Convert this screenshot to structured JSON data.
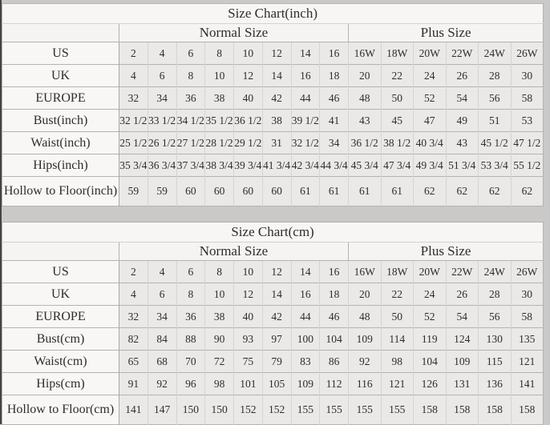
{
  "colors": {
    "page_background": "#cac9c7",
    "table_background": "#f7f6f4",
    "value_cell_background": "#eae9e7",
    "grid_line": "#b4b3b1",
    "text": "#2e2d2c",
    "left_edge": "#45433f"
  },
  "tables": [
    {
      "title": "Size Chart(inch)",
      "groups": [
        {
          "label": "Normal Size",
          "span": 8
        },
        {
          "label": "Plus Size",
          "span": 6
        }
      ],
      "rows": [
        {
          "label": "US",
          "values": [
            "2",
            "4",
            "6",
            "8",
            "10",
            "12",
            "14",
            "16",
            "16W",
            "18W",
            "20W",
            "22W",
            "24W",
            "26W"
          ]
        },
        {
          "label": "UK",
          "values": [
            "4",
            "6",
            "8",
            "10",
            "12",
            "14",
            "16",
            "18",
            "20",
            "22",
            "24",
            "26",
            "28",
            "30"
          ]
        },
        {
          "label": "EUROPE",
          "values": [
            "32",
            "34",
            "36",
            "38",
            "40",
            "42",
            "44",
            "46",
            "48",
            "50",
            "52",
            "54",
            "56",
            "58"
          ]
        },
        {
          "label": "Bust(inch)",
          "values": [
            "32 1/2",
            "33 1/2",
            "34 1/2",
            "35 1/2",
            "36 1/2",
            "38",
            "39 1/2",
            "41",
            "43",
            "45",
            "47",
            "49",
            "51",
            "53"
          ]
        },
        {
          "label": "Waist(inch)",
          "values": [
            "25 1/2",
            "26 1/2",
            "27 1/2",
            "28 1/2",
            "29 1/2",
            "31",
            "32 1/2",
            "34",
            "36 1/2",
            "38 1/2",
            "40 3/4",
            "43",
            "45 1/2",
            "47 1/2"
          ]
        },
        {
          "label": "Hips(inch)",
          "values": [
            "35 3/4",
            "36 3/4",
            "37 3/4",
            "38 3/4",
            "39 3/4",
            "41 3/4",
            "42 3/4",
            "44 3/4",
            "45 3/4",
            "47 3/4",
            "49 3/4",
            "51 3/4",
            "53 3/4",
            "55 1/2"
          ]
        },
        {
          "label": "Hollow to Floor(inch)",
          "values": [
            "59",
            "59",
            "60",
            "60",
            "60",
            "60",
            "61",
            "61",
            "61",
            "61",
            "62",
            "62",
            "62",
            "62"
          ]
        }
      ]
    },
    {
      "title": "Size Chart(cm)",
      "groups": [
        {
          "label": "Normal Size",
          "span": 8
        },
        {
          "label": "Plus Size",
          "span": 6
        }
      ],
      "rows": [
        {
          "label": "US",
          "values": [
            "2",
            "4",
            "6",
            "8",
            "10",
            "12",
            "14",
            "16",
            "16W",
            "18W",
            "20W",
            "22W",
            "24W",
            "26W"
          ]
        },
        {
          "label": "UK",
          "values": [
            "4",
            "6",
            "8",
            "10",
            "12",
            "14",
            "16",
            "18",
            "20",
            "22",
            "24",
            "26",
            "28",
            "30"
          ]
        },
        {
          "label": "EUROPE",
          "values": [
            "32",
            "34",
            "36",
            "38",
            "40",
            "42",
            "44",
            "46",
            "48",
            "50",
            "52",
            "54",
            "56",
            "58"
          ]
        },
        {
          "label": "Bust(cm)",
          "values": [
            "82",
            "84",
            "88",
            "90",
            "93",
            "97",
            "100",
            "104",
            "109",
            "114",
            "119",
            "124",
            "130",
            "135"
          ]
        },
        {
          "label": "Waist(cm)",
          "values": [
            "65",
            "68",
            "70",
            "72",
            "75",
            "79",
            "83",
            "86",
            "92",
            "98",
            "104",
            "109",
            "115",
            "121"
          ]
        },
        {
          "label": "Hips(cm)",
          "values": [
            "91",
            "92",
            "96",
            "98",
            "101",
            "105",
            "109",
            "112",
            "116",
            "121",
            "126",
            "131",
            "136",
            "141"
          ]
        },
        {
          "label": "Hollow to Floor(cm)",
          "values": [
            "141",
            "147",
            "150",
            "150",
            "152",
            "152",
            "155",
            "155",
            "155",
            "155",
            "158",
            "158",
            "158",
            "158"
          ]
        }
      ]
    }
  ]
}
